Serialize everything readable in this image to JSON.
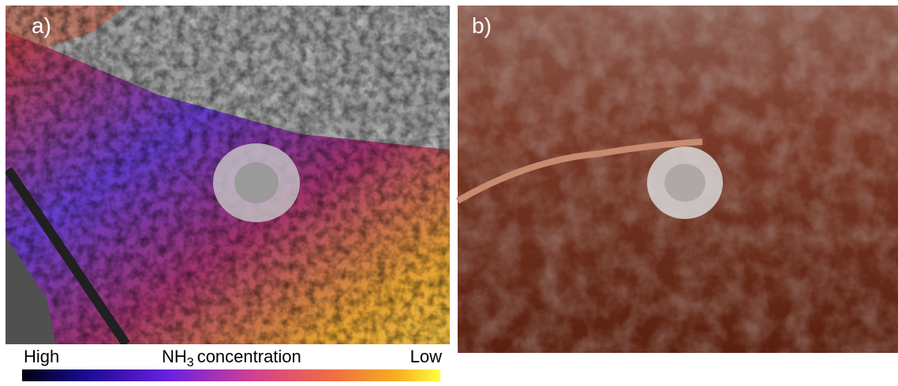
{
  "panels": [
    {
      "label": "a)"
    },
    {
      "label": "b)"
    }
  ],
  "colorbar": {
    "high": "High",
    "low": "Low",
    "title": {
      "main": "NH",
      "subscript": "3",
      "rest": "concentration"
    }
  }
}
